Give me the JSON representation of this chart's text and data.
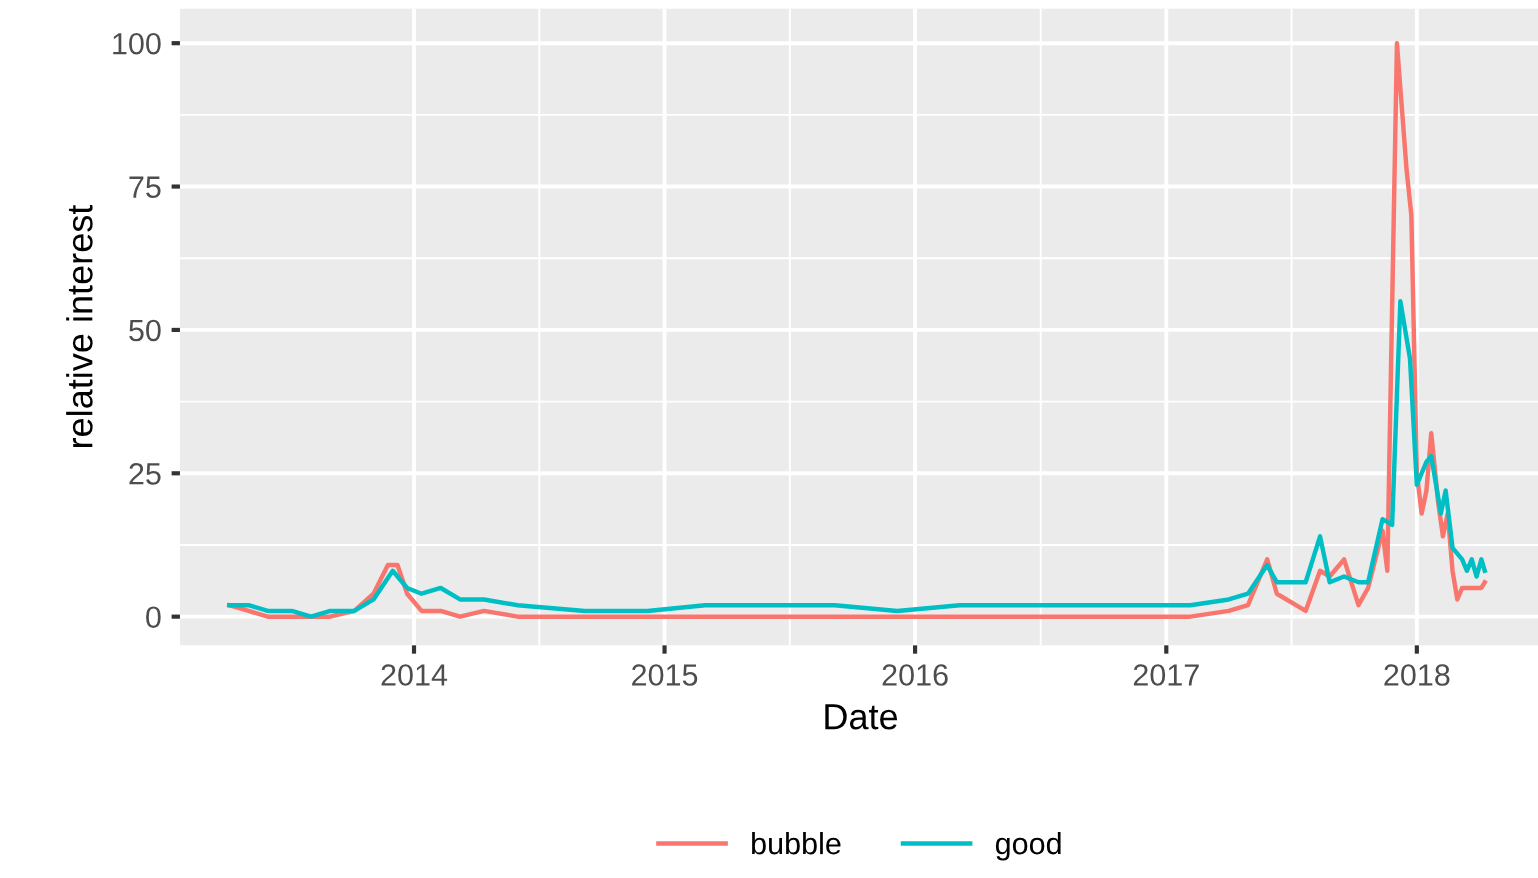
{
  "chart_data": {
    "type": "line",
    "xlabel": "Date",
    "ylabel": "relative interest",
    "xlim": [
      "2013-01-25",
      "2018-07-01"
    ],
    "ylim": [
      -5,
      106
    ],
    "xticks": [
      {
        "value": "2014-01-01",
        "label": "2014"
      },
      {
        "value": "2015-01-01",
        "label": "2015"
      },
      {
        "value": "2016-01-01",
        "label": "2016"
      },
      {
        "value": "2017-01-01",
        "label": "2017"
      },
      {
        "value": "2018-01-01",
        "label": "2018"
      }
    ],
    "yticks": [
      0,
      25,
      50,
      75,
      100
    ],
    "grid": true,
    "legend": "bottom",
    "line_style": "solid",
    "marker": "none",
    "series": [
      {
        "name": "bubble",
        "color": "#f8766d",
        "x": [
          "2013-04-07",
          "2013-05-05",
          "2013-06-02",
          "2013-07-07",
          "2013-08-04",
          "2013-09-01",
          "2013-10-06",
          "2013-11-03",
          "2013-11-24",
          "2013-12-08",
          "2013-12-22",
          "2014-01-12",
          "2014-02-09",
          "2014-03-09",
          "2014-04-13",
          "2014-06-01",
          "2014-09-07",
          "2014-12-07",
          "2015-03-01",
          "2015-06-07",
          "2015-09-06",
          "2015-12-06",
          "2016-03-06",
          "2016-06-05",
          "2016-09-04",
          "2016-12-04",
          "2017-02-05",
          "2017-04-02",
          "2017-04-30",
          "2017-05-28",
          "2017-06-11",
          "2017-07-09",
          "2017-07-23",
          "2017-08-13",
          "2017-08-27",
          "2017-09-17",
          "2017-10-08",
          "2017-10-22",
          "2017-11-12",
          "2017-11-19",
          "2017-12-03",
          "2017-12-17",
          "2017-12-24",
          "2018-01-01",
          "2018-01-08",
          "2018-01-15",
          "2018-01-22",
          "2018-02-01",
          "2018-02-08",
          "2018-02-15",
          "2018-02-22",
          "2018-03-01",
          "2018-03-08",
          "2018-04-05",
          "2018-04-10"
        ],
        "values": [
          2,
          1,
          0,
          0,
          0,
          0,
          1,
          4,
          9,
          9,
          4,
          1,
          1,
          0,
          1,
          0,
          0,
          0,
          0,
          0,
          0,
          0,
          0,
          0,
          0,
          0,
          0,
          1,
          2,
          10,
          4,
          2,
          1,
          8,
          7,
          10,
          2,
          5,
          15,
          8,
          100,
          78,
          70,
          25,
          18,
          22,
          32,
          20,
          14,
          18,
          8,
          3,
          5,
          5,
          6
        ]
      },
      {
        "name": "good",
        "color": "#00bfc4",
        "x": [
          "2013-04-07",
          "2013-05-05",
          "2013-06-02",
          "2013-07-07",
          "2013-08-04",
          "2013-09-01",
          "2013-10-06",
          "2013-11-03",
          "2013-12-01",
          "2013-12-22",
          "2014-01-12",
          "2014-02-09",
          "2014-03-09",
          "2014-04-13",
          "2014-06-01",
          "2014-09-07",
          "2014-12-07",
          "2015-03-01",
          "2015-06-07",
          "2015-09-06",
          "2015-12-06",
          "2016-03-06",
          "2016-06-05",
          "2016-09-04",
          "2016-12-04",
          "2017-02-05",
          "2017-04-02",
          "2017-04-30",
          "2017-05-28",
          "2017-06-11",
          "2017-07-09",
          "2017-07-23",
          "2017-08-13",
          "2017-08-27",
          "2017-09-17",
          "2017-10-08",
          "2017-10-22",
          "2017-11-12",
          "2017-11-26",
          "2017-12-08",
          "2017-12-22",
          "2018-01-01",
          "2018-01-15",
          "2018-01-22",
          "2018-02-05",
          "2018-02-12",
          "2018-02-22",
          "2018-03-08",
          "2018-03-15",
          "2018-03-22",
          "2018-03-29",
          "2018-04-05",
          "2018-04-10"
        ],
        "values": [
          2,
          2,
          1,
          1,
          0,
          1,
          1,
          3,
          8,
          5,
          4,
          5,
          3,
          3,
          2,
          1,
          1,
          2,
          2,
          2,
          1,
          2,
          2,
          2,
          2,
          2,
          3,
          4,
          9,
          6,
          6,
          6,
          14,
          6,
          7,
          6,
          6,
          17,
          16,
          55,
          45,
          23,
          27,
          28,
          18,
          22,
          12,
          10,
          8,
          10,
          7,
          10,
          8
        ]
      }
    ]
  }
}
